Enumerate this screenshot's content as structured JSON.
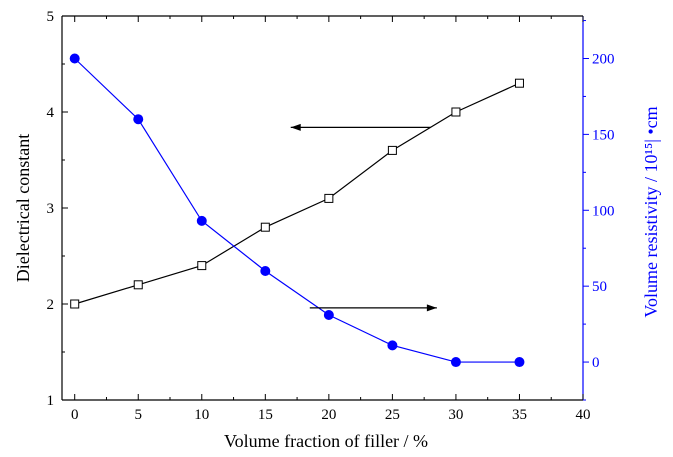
{
  "chart_data": {
    "type": "line",
    "title": "",
    "xlabel": "Volume fraction of filler / %",
    "ylabel": "Dielectrical constant",
    "y2label": "Volume resistivity / 10¹⁵| •cm",
    "xlim": [
      -1,
      40
    ],
    "ylim": [
      1,
      5
    ],
    "y2lim": [
      -25,
      228
    ],
    "x_ticks": [
      0,
      5,
      10,
      15,
      20,
      25,
      30,
      35,
      40
    ],
    "y_ticks": [
      1,
      2,
      3,
      4,
      5
    ],
    "y2_ticks": [
      0,
      50,
      100,
      150,
      200
    ],
    "grid": false,
    "series": [
      {
        "axis": "left",
        "marker": "open-square",
        "color": "#000000",
        "x": [
          0,
          5,
          10,
          15,
          20,
          25,
          30,
          35
        ],
        "values": [
          2.0,
          2.2,
          2.4,
          2.8,
          3.1,
          3.6,
          4.0,
          4.3
        ]
      },
      {
        "axis": "right",
        "marker": "filled-circle",
        "color": "#0000ff",
        "x": [
          0,
          5,
          10,
          15,
          20,
          25,
          30,
          35
        ],
        "values": [
          200,
          160,
          93,
          60,
          31,
          11,
          0,
          0
        ]
      }
    ],
    "annotations": [
      {
        "type": "arrow",
        "direction": "left",
        "points_to_axis": "left",
        "from": [
          28,
          3.84
        ],
        "to": [
          17,
          3.84
        ]
      },
      {
        "type": "arrow",
        "direction": "right",
        "points_to_axis": "right",
        "from": [
          18.5,
          1.96
        ],
        "to": [
          28.5,
          1.96
        ]
      }
    ]
  }
}
